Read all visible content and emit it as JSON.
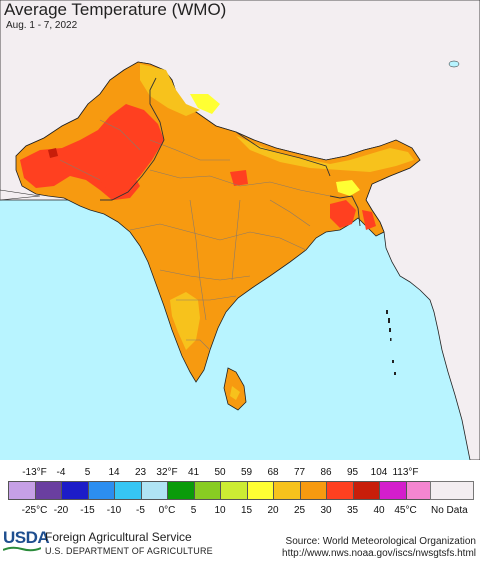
{
  "map": {
    "title": "Average Temperature (WMO)",
    "date_range": "Aug. 1 - 7, 2022",
    "colors": {
      "ocean": "#b8f4ff",
      "no_data_land": "#f3eef1",
      "country_border": "#222222",
      "state_border": "#8a7a6a"
    }
  },
  "legend": {
    "fahrenheit_labels": [
      "-13°F",
      "-4",
      "5",
      "14",
      "23",
      "32°F",
      "41",
      "50",
      "59",
      "68",
      "77",
      "86",
      "95",
      "104",
      "113°F"
    ],
    "celsius_labels": [
      "-25°C",
      "-20",
      "-15",
      "-10",
      "-5",
      "0°C",
      "5",
      "10",
      "15",
      "20",
      "25",
      "30",
      "35",
      "40",
      "45°C"
    ],
    "colors": [
      "#c6a0e6",
      "#6a3fa0",
      "#1c1cc8",
      "#2c8ef0",
      "#36c6f4",
      "#b0e4f4",
      "#0a9b0a",
      "#88cc22",
      "#ccec33",
      "#ffff33",
      "#f7c21c",
      "#f79a10",
      "#ff4020",
      "#c81e0a",
      "#d41ecc",
      "#f486d0"
    ],
    "no_data_label": "No Data",
    "no_data_color": "#f3eef1"
  },
  "footer": {
    "logo_text": "USDA",
    "agency_line1": "Foreign Agricultural Service",
    "agency_line2": "U.S. DEPARTMENT OF AGRICULTURE",
    "source_line1": "Source: World Meteorological Organization",
    "source_line2": "http://www.nws.noaa.gov/iscs/nwsgtsfs.html"
  }
}
